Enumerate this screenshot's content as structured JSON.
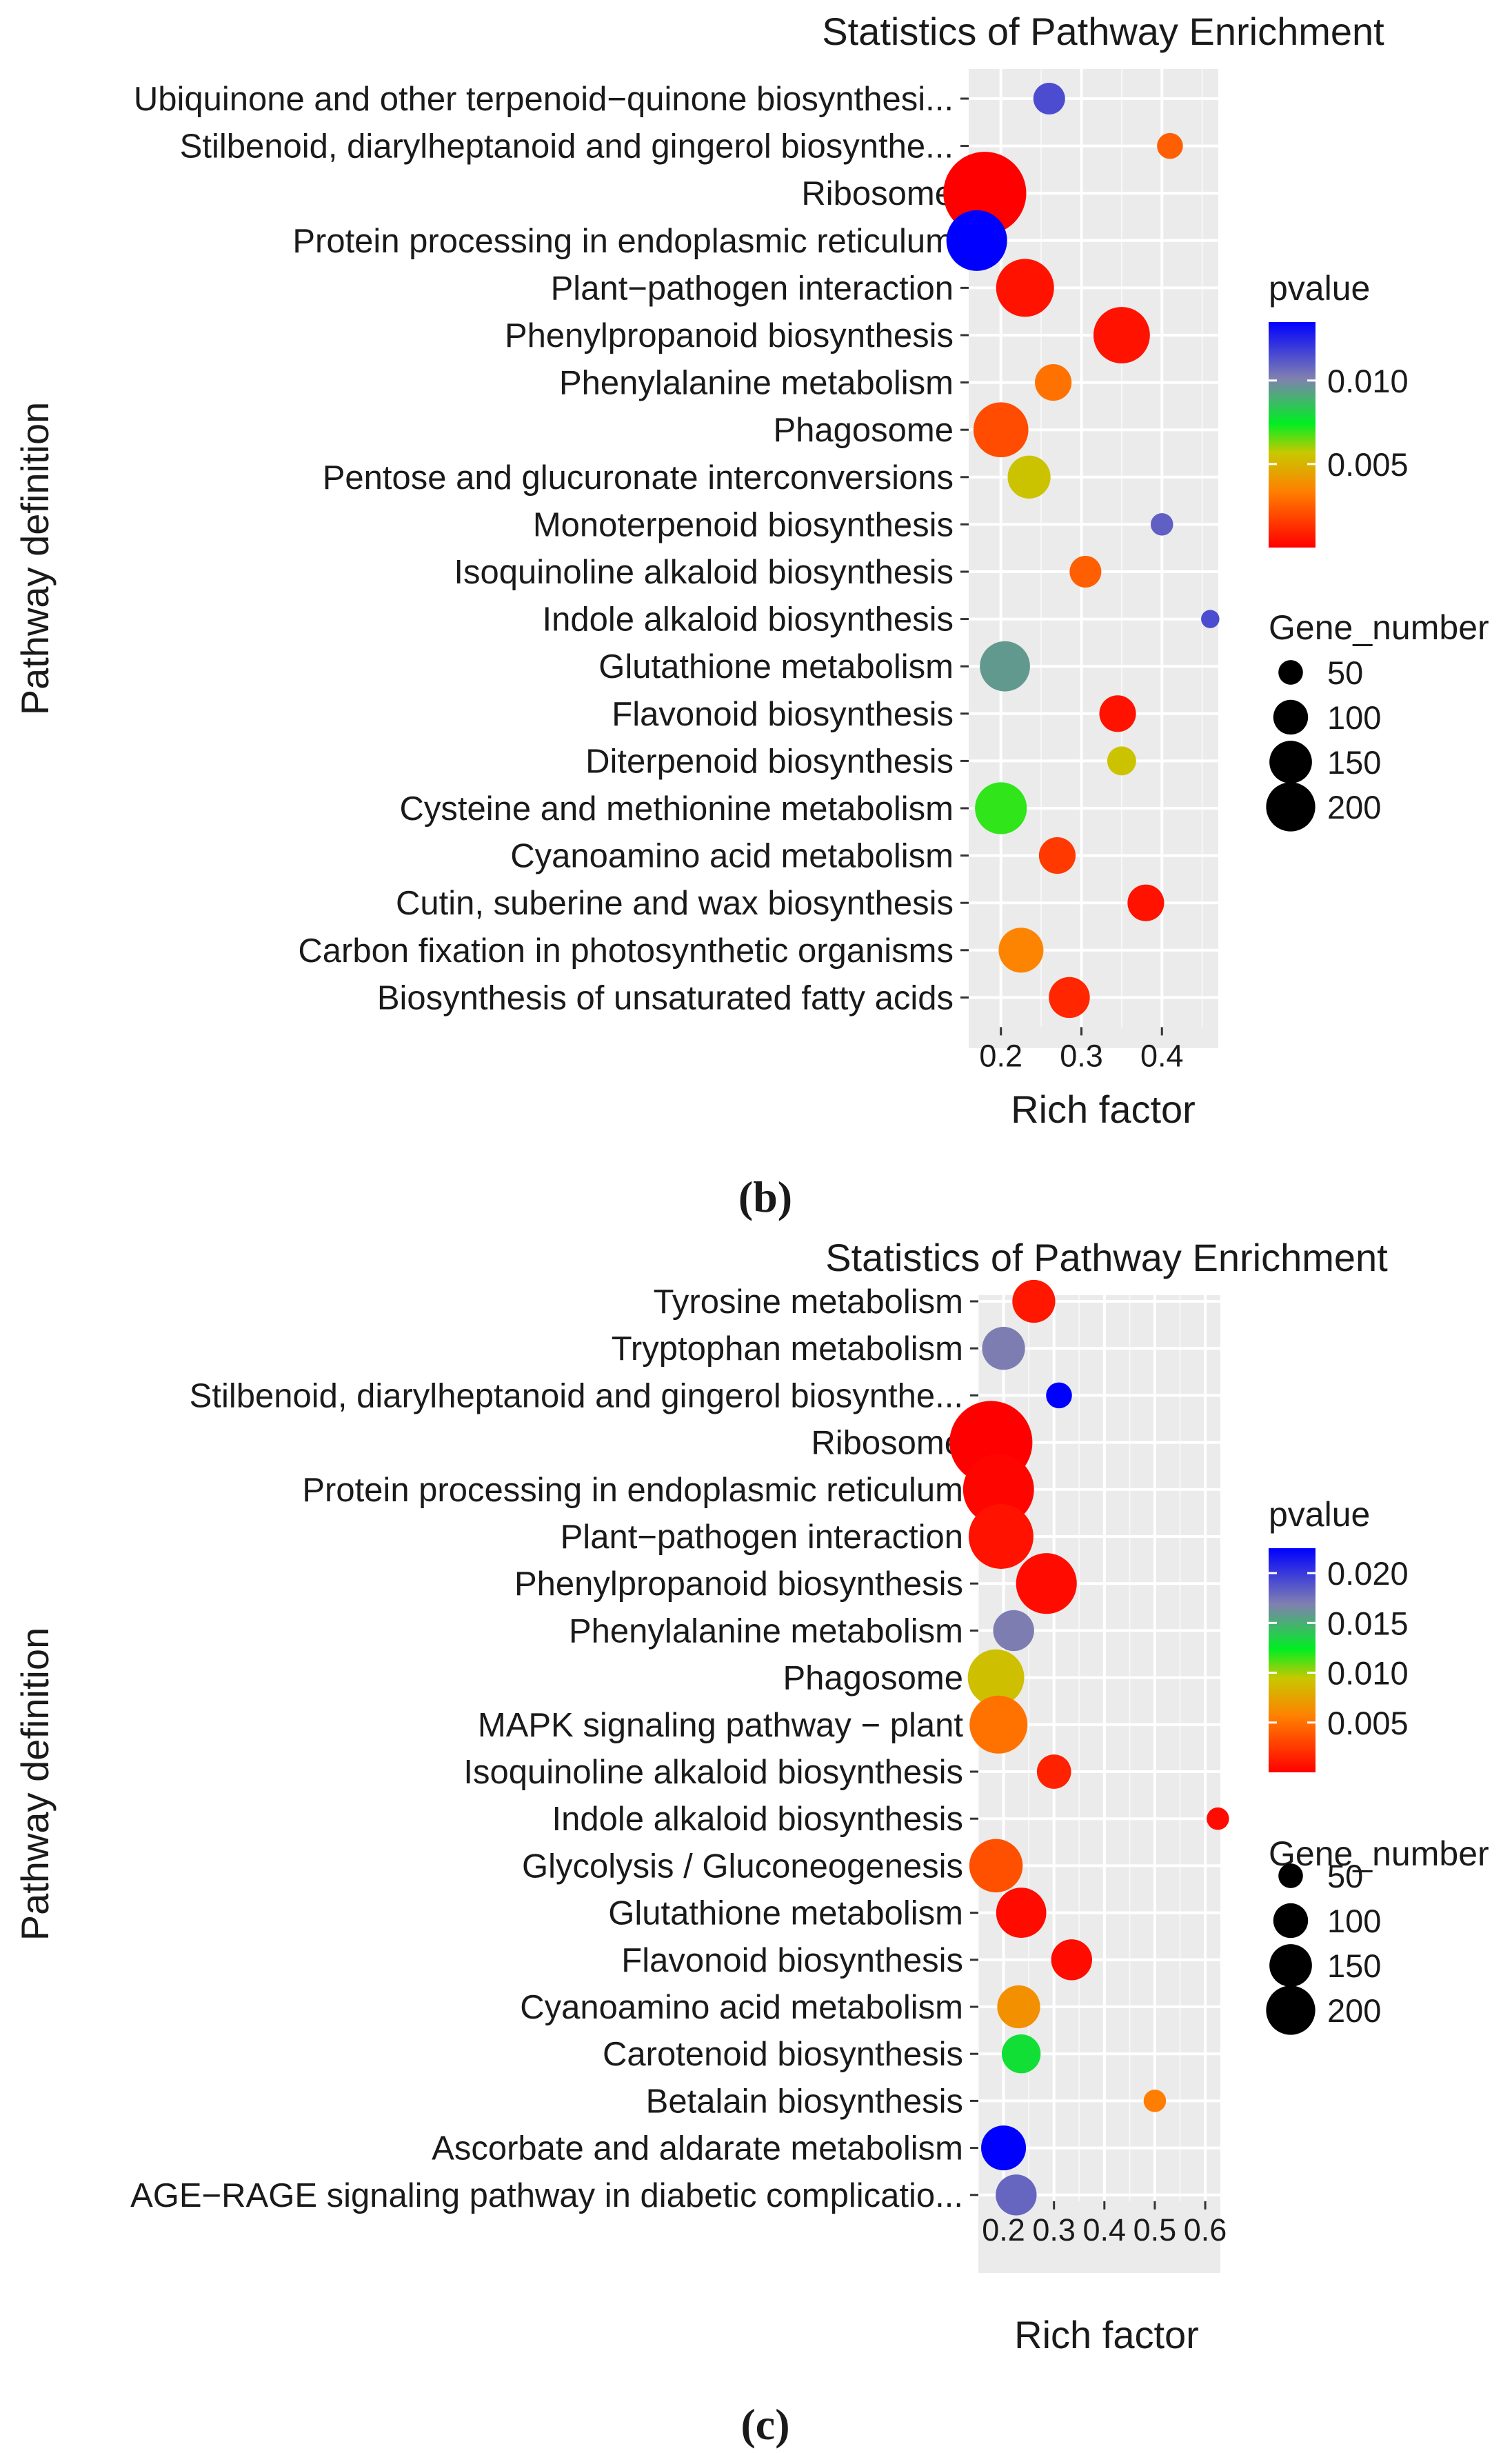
{
  "panels": [
    {
      "panel_label": "(b)",
      "title": "Statistics of Pathway Enrichment",
      "xlabel": "Rich factor",
      "ylabel": "Pathway definition",
      "legend": {
        "color_title": "pvalue",
        "color_ticks": [
          0.005,
          0.01
        ],
        "color_tick_labels": [
          "0.005",
          "0.010"
        ],
        "size_title": "Gene_number",
        "size_values": [
          50,
          100,
          150,
          200
        ],
        "size_labels": [
          "50",
          "100",
          "150",
          "200"
        ]
      },
      "chart_data": {
        "type": "scatter",
        "xlim": [
          0.16,
          0.47
        ],
        "xticks": [
          0.2,
          0.3,
          0.4
        ],
        "xtick_labels": [
          "0.2",
          "0.3",
          "0.4"
        ],
        "pvalue_range": [
          0.0,
          0.0135
        ],
        "points": [
          {
            "pathway": "Ubiquinone and other terpenoid−quinone biosynthesi...",
            "rich_factor": 0.26,
            "pvalue": 0.0115,
            "gene_number": 30
          },
          {
            "pathway": "Stilbenoid, diarylheptanoid and gingerol biosynthe...",
            "rich_factor": 0.41,
            "pvalue": 0.0025,
            "gene_number": 20
          },
          {
            "pathway": "Ribosome",
            "rich_factor": 0.18,
            "pvalue": 0.0,
            "gene_number": 205
          },
          {
            "pathway": "Protein processing in endoplasmic reticulum",
            "rich_factor": 0.17,
            "pvalue": 0.0135,
            "gene_number": 110
          },
          {
            "pathway": "Plant−pathogen interaction",
            "rich_factor": 0.23,
            "pvalue": 0.0005,
            "gene_number": 100
          },
          {
            "pathway": "Phenylpropanoid biosynthesis",
            "rich_factor": 0.35,
            "pvalue": 0.0005,
            "gene_number": 95
          },
          {
            "pathway": "Phenylalanine metabolism",
            "rich_factor": 0.265,
            "pvalue": 0.003,
            "gene_number": 40
          },
          {
            "pathway": "Phagosome",
            "rich_factor": 0.2,
            "pvalue": 0.002,
            "gene_number": 90
          },
          {
            "pathway": "Pentose and glucuronate interconversions",
            "rich_factor": 0.235,
            "pvalue": 0.0055,
            "gene_number": 55
          },
          {
            "pathway": "Monoterpenoid biosynthesis",
            "rich_factor": 0.4,
            "pvalue": 0.011,
            "gene_number": 15
          },
          {
            "pathway": "Isoquinoline alkaloid biosynthesis",
            "rich_factor": 0.305,
            "pvalue": 0.0025,
            "gene_number": 30
          },
          {
            "pathway": "Indole alkaloid biosynthesis",
            "rich_factor": 0.46,
            "pvalue": 0.0115,
            "gene_number": 10
          },
          {
            "pathway": "Glutathione metabolism",
            "rich_factor": 0.205,
            "pvalue": 0.0095,
            "gene_number": 75
          },
          {
            "pathway": "Flavonoid biosynthesis",
            "rich_factor": 0.345,
            "pvalue": 0.0005,
            "gene_number": 40
          },
          {
            "pathway": "Diterpenoid biosynthesis",
            "rich_factor": 0.35,
            "pvalue": 0.0055,
            "gene_number": 25
          },
          {
            "pathway": "Cysteine and methionine metabolism",
            "rich_factor": 0.2,
            "pvalue": 0.007,
            "gene_number": 80
          },
          {
            "pathway": "Cyanoamino acid metabolism",
            "rich_factor": 0.27,
            "pvalue": 0.0015,
            "gene_number": 40
          },
          {
            "pathway": "Cutin, suberine and wax biosynthesis",
            "rich_factor": 0.38,
            "pvalue": 0.0005,
            "gene_number": 40
          },
          {
            "pathway": "Carbon fixation in photosynthetic organisms",
            "rich_factor": 0.225,
            "pvalue": 0.0035,
            "gene_number": 60
          },
          {
            "pathway": "Biosynthesis of unsaturated fatty acids",
            "rich_factor": 0.285,
            "pvalue": 0.001,
            "gene_number": 50
          }
        ]
      }
    },
    {
      "panel_label": "(c)",
      "title": "Statistics of Pathway Enrichment",
      "xlabel": "Rich factor",
      "ylabel": "Pathway definition",
      "legend": {
        "color_title": "pvalue",
        "color_ticks": [
          0.005,
          0.01,
          0.015,
          0.02
        ],
        "color_tick_labels": [
          "0.005",
          "0.010",
          "0.015",
          "0.020"
        ],
        "size_title": "Gene_number",
        "size_values": [
          50,
          100,
          150,
          200
        ],
        "size_labels": [
          "50",
          "100",
          "150",
          "200"
        ]
      },
      "chart_data": {
        "type": "scatter",
        "xlim": [
          0.15,
          0.63
        ],
        "xticks": [
          0.2,
          0.3,
          0.4,
          0.5,
          0.6
        ],
        "xtick_labels": [
          "0.2",
          "0.3",
          "0.4",
          "0.5",
          "0.6"
        ],
        "pvalue_range": [
          0.0,
          0.0225
        ],
        "points": [
          {
            "pathway": "Tyrosine metabolism",
            "rich_factor": 0.26,
            "pvalue": 0.001,
            "gene_number": 55
          },
          {
            "pathway": "Tryptophan metabolism",
            "rich_factor": 0.2,
            "pvalue": 0.017,
            "gene_number": 55
          },
          {
            "pathway": "Stilbenoid, diarylheptanoid and gingerol biosynthe...",
            "rich_factor": 0.31,
            "pvalue": 0.0225,
            "gene_number": 20
          },
          {
            "pathway": "Ribosome",
            "rich_factor": 0.175,
            "pvalue": 0.0,
            "gene_number": 205
          },
          {
            "pathway": "Protein processing in endoplasmic reticulum",
            "rich_factor": 0.19,
            "pvalue": 0.0002,
            "gene_number": 150
          },
          {
            "pathway": "Plant−pathogen interaction",
            "rich_factor": 0.195,
            "pvalue": 0.0008,
            "gene_number": 125
          },
          {
            "pathway": "Phenylpropanoid biosynthesis",
            "rich_factor": 0.285,
            "pvalue": 0.0005,
            "gene_number": 110
          },
          {
            "pathway": "Phenylalanine metabolism",
            "rich_factor": 0.22,
            "pvalue": 0.017,
            "gene_number": 50
          },
          {
            "pathway": "Phagosome",
            "rich_factor": 0.185,
            "pvalue": 0.009,
            "gene_number": 95
          },
          {
            "pathway": "MAPK signaling pathway − plant",
            "rich_factor": 0.19,
            "pvalue": 0.005,
            "gene_number": 100
          },
          {
            "pathway": "Isoquinoline alkaloid biosynthesis",
            "rich_factor": 0.3,
            "pvalue": 0.0015,
            "gene_number": 35
          },
          {
            "pathway": "Indole alkaloid biosynthesis",
            "rich_factor": 0.625,
            "pvalue": 0.0005,
            "gene_number": 15
          },
          {
            "pathway": "Glycolysis / Gluconeogenesis",
            "rich_factor": 0.185,
            "pvalue": 0.0035,
            "gene_number": 85
          },
          {
            "pathway": "Glutathione metabolism",
            "rich_factor": 0.235,
            "pvalue": 0.0005,
            "gene_number": 75
          },
          {
            "pathway": "Flavonoid biosynthesis",
            "rich_factor": 0.335,
            "pvalue": 0.0005,
            "gene_number": 50
          },
          {
            "pathway": "Cyanoamino acid metabolism",
            "rich_factor": 0.23,
            "pvalue": 0.0065,
            "gene_number": 55
          },
          {
            "pathway": "Carotenoid biosynthesis",
            "rich_factor": 0.235,
            "pvalue": 0.013,
            "gene_number": 45
          },
          {
            "pathway": "Betalain biosynthesis",
            "rich_factor": 0.5,
            "pvalue": 0.0055,
            "gene_number": 15
          },
          {
            "pathway": "Ascorbate and aldarate metabolism",
            "rich_factor": 0.2,
            "pvalue": 0.0225,
            "gene_number": 60
          },
          {
            "pathway": "AGE−RAGE signaling pathway in diabetic complicatio...",
            "rich_factor": 0.225,
            "pvalue": 0.018,
            "gene_number": 50
          }
        ]
      }
    }
  ]
}
